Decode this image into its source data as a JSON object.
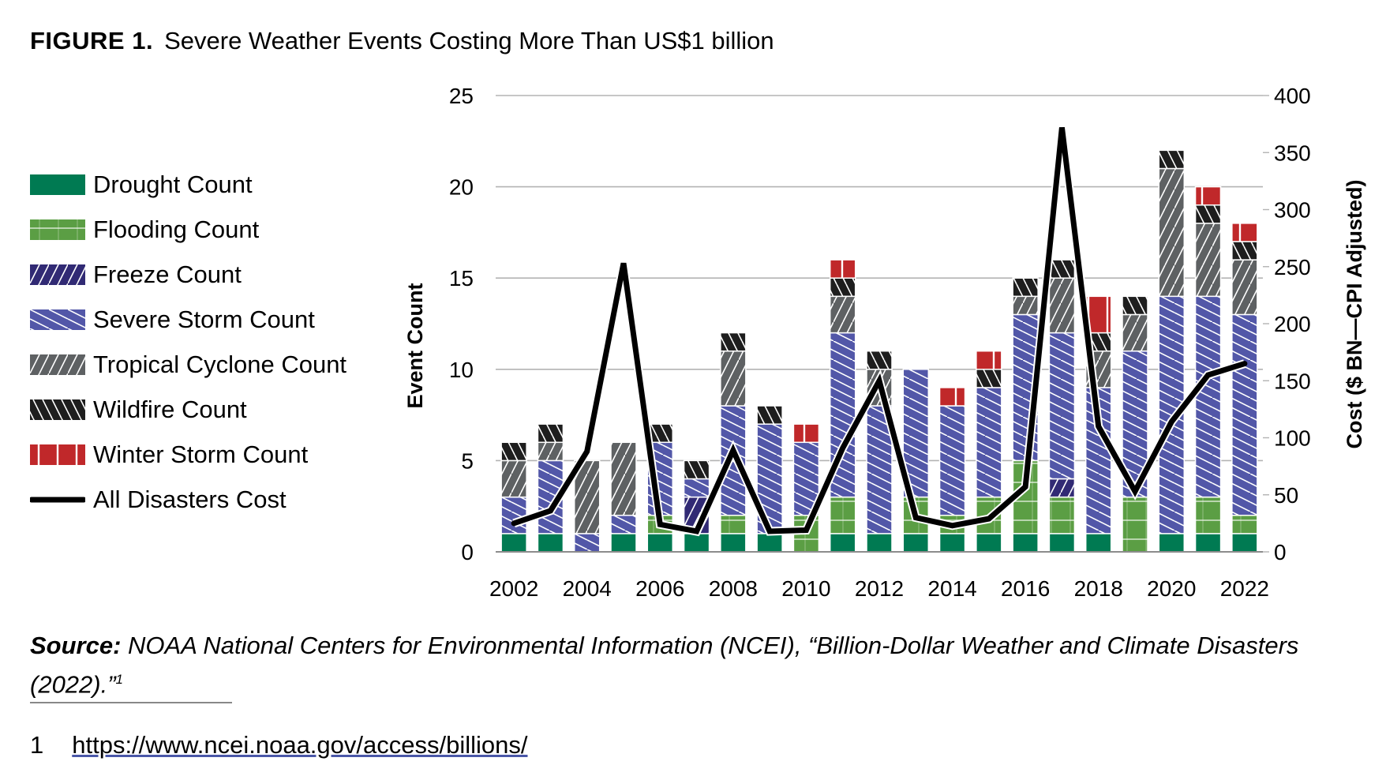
{
  "figure": {
    "label": "FIGURE 1.",
    "title": "Severe Weather Events Costing More Than US$1 billion"
  },
  "chart_data": {
    "type": "bar",
    "stacked": true,
    "title": "Severe Weather Events Costing More Than US$1 billion",
    "xlabel": "",
    "ylabel": "Event Count",
    "y2label": "Cost ($ BN—CPI Adjusted)",
    "ylim": [
      0,
      25
    ],
    "y2lim": [
      0,
      400
    ],
    "yticks": [
      0,
      5,
      10,
      15,
      20,
      25
    ],
    "y2ticks": [
      0,
      50,
      100,
      150,
      200,
      250,
      300,
      350,
      400
    ],
    "grid": true,
    "legend_position": "left",
    "categories": [
      "2002",
      "2003",
      "2004",
      "2005",
      "2006",
      "2007",
      "2008",
      "2009",
      "2010",
      "2011",
      "2012",
      "2013",
      "2014",
      "2015",
      "2016",
      "2017",
      "2018",
      "2019",
      "2020",
      "2021",
      "2022"
    ],
    "xtick_labels": [
      "2002",
      "2004",
      "2006",
      "2008",
      "2010",
      "2012",
      "2014",
      "2016",
      "2018",
      "2020",
      "2022"
    ],
    "series": [
      {
        "name": "Drought Count",
        "color": "#007a52",
        "pattern": "solid",
        "values": [
          1,
          1,
          0,
          1,
          1,
          1,
          1,
          1,
          0,
          1,
          1,
          1,
          1,
          1,
          1,
          1,
          1,
          0,
          1,
          1,
          1
        ]
      },
      {
        "name": "Flooding Count",
        "color": "#5b9e44",
        "pattern": "horizontal",
        "values": [
          0,
          0,
          0,
          0,
          1,
          0,
          1,
          0,
          2,
          2,
          0,
          2,
          1,
          2,
          4,
          2,
          0,
          3,
          0,
          2,
          1
        ]
      },
      {
        "name": "Freeze Count",
        "color": "#312a74",
        "pattern": "diag-up",
        "values": [
          0,
          0,
          0,
          0,
          0,
          2,
          0,
          0,
          0,
          0,
          0,
          0,
          0,
          0,
          0,
          1,
          0,
          0,
          0,
          0,
          0
        ]
      },
      {
        "name": "Severe Storm Count",
        "color": "#5257a8",
        "pattern": "diag-down",
        "values": [
          2,
          4,
          1,
          1,
          4,
          1,
          6,
          6,
          4,
          9,
          7,
          7,
          6,
          6,
          8,
          8,
          8,
          8,
          13,
          11,
          11
        ]
      },
      {
        "name": "Tropical Cyclone Count",
        "color": "#5e6163",
        "pattern": "diag-up",
        "values": [
          2,
          1,
          4,
          4,
          0,
          0,
          3,
          0,
          0,
          2,
          2,
          0,
          0,
          0,
          1,
          3,
          2,
          2,
          7,
          4,
          3
        ]
      },
      {
        "name": "Wildfire Count",
        "color": "#1e1e1e",
        "pattern": "diag-down-wide",
        "values": [
          1,
          1,
          0,
          0,
          1,
          1,
          1,
          1,
          0,
          1,
          1,
          0,
          0,
          1,
          1,
          1,
          1,
          1,
          1,
          1,
          1
        ]
      },
      {
        "name": "Winter Storm Count",
        "color": "#c0282a",
        "pattern": "vertical",
        "values": [
          0,
          0,
          0,
          0,
          0,
          0,
          0,
          0,
          1,
          1,
          0,
          0,
          1,
          1,
          0,
          0,
          2,
          0,
          0,
          1,
          1
        ]
      }
    ],
    "line_series": {
      "name": "All Disasters Cost",
      "color": "#000000",
      "axis": "right",
      "values": [
        25,
        36,
        88,
        253,
        24,
        18,
        89,
        18,
        19,
        91,
        150,
        30,
        23,
        29,
        57,
        372,
        110,
        53,
        114,
        155,
        165
      ]
    }
  },
  "legend": [
    {
      "label": "Drought Count"
    },
    {
      "label": "Flooding Count"
    },
    {
      "label": "Freeze Count"
    },
    {
      "label": "Severe Storm Count"
    },
    {
      "label": "Tropical Cyclone Count"
    },
    {
      "label": "Wildfire Count"
    },
    {
      "label": "Winter Storm Count"
    },
    {
      "label": "All Disasters Cost"
    }
  ],
  "source": {
    "label": "Source:",
    "text": " NOAA National Centers for Environmental Information (NCEI), “Billion-Dollar Weather and Climate Disasters (2022).”",
    "ref": "1"
  },
  "footnote": {
    "number": "1",
    "link": "https://www.ncei.noaa.gov/access/billions/"
  }
}
